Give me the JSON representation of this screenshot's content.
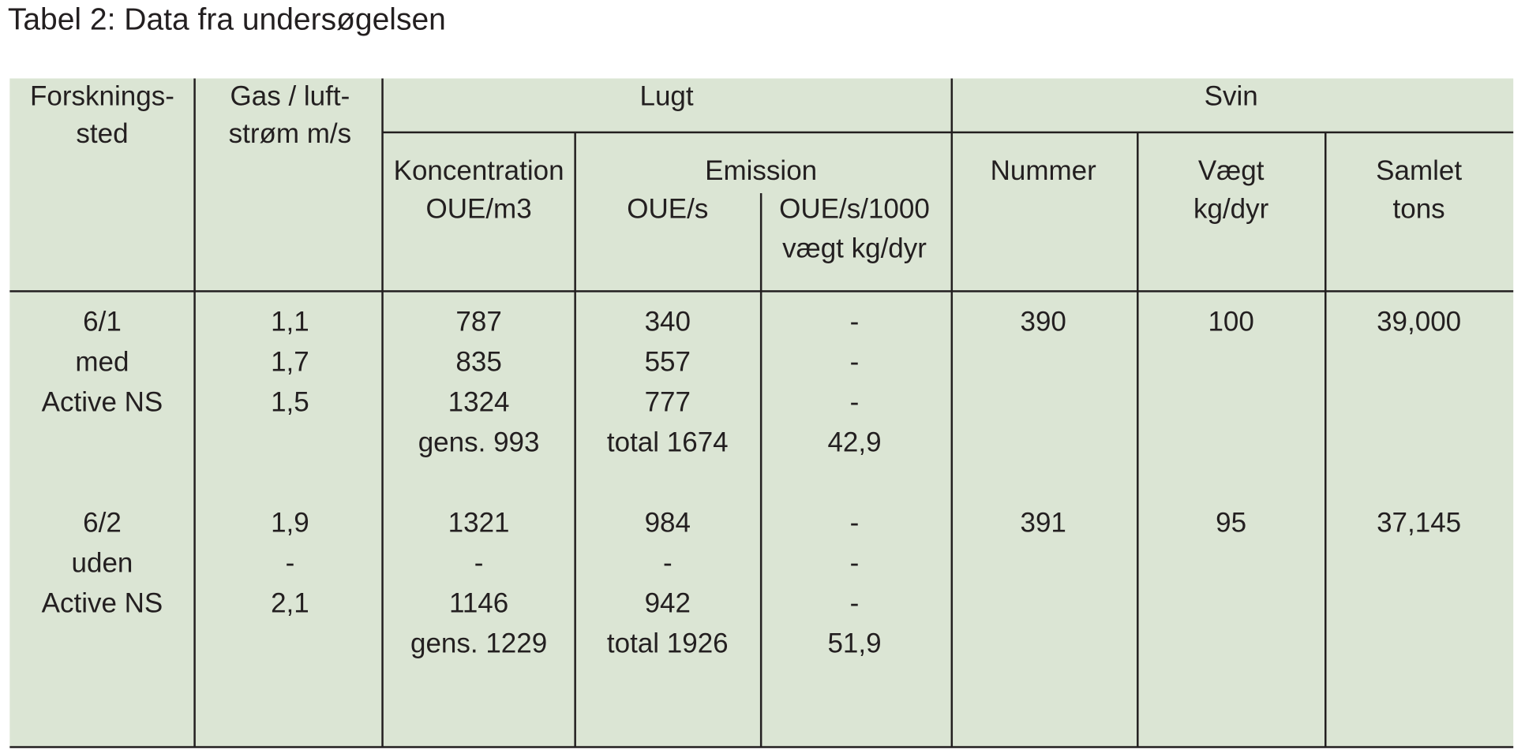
{
  "header": {
    "title": "Tabel 2: Data fra undersøgelsen"
  },
  "table": {
    "header": {
      "site": [
        "Forsknings-",
        "sted"
      ],
      "gas": [
        "Gas / luft-",
        "strøm m/s"
      ],
      "lugt": "Lugt",
      "svin": "Svin",
      "concentration": [
        "Koncentration",
        "OUE/m3"
      ],
      "emission": "Emission",
      "emission_s": "OUE/s",
      "emission_1000": [
        "OUE/s/1000",
        "vægt kg/dyr"
      ],
      "nummer": "Nummer",
      "vaegt": [
        "Vægt",
        "kg/dyr"
      ],
      "samlet": [
        "Samlet",
        "tons"
      ]
    },
    "groups": [
      {
        "site": [
          "6/1",
          "med",
          "Active NS"
        ],
        "gas": [
          "1,1",
          "1,7",
          "1,5"
        ],
        "concentration": [
          "787",
          "835",
          "1324",
          "gens. 993"
        ],
        "emission_s": [
          "340",
          "557",
          "777",
          "total 1674"
        ],
        "emission_1000": [
          "-",
          "-",
          "-",
          "42,9"
        ],
        "nummer": "390",
        "vaegt": "100",
        "samlet": "39,000"
      },
      {
        "site": [
          "6/2",
          "uden",
          "Active NS"
        ],
        "gas": [
          "1,9",
          "-",
          "2,1"
        ],
        "concentration": [
          "1321",
          "-",
          "1146",
          "gens. 1229"
        ],
        "emission_s": [
          "984",
          "-",
          "942",
          "total 1926"
        ],
        "emission_1000": [
          "-",
          "-",
          "-",
          "51,9"
        ],
        "nummer": "391",
        "vaegt": "95",
        "samlet": "37,145"
      }
    ]
  }
}
